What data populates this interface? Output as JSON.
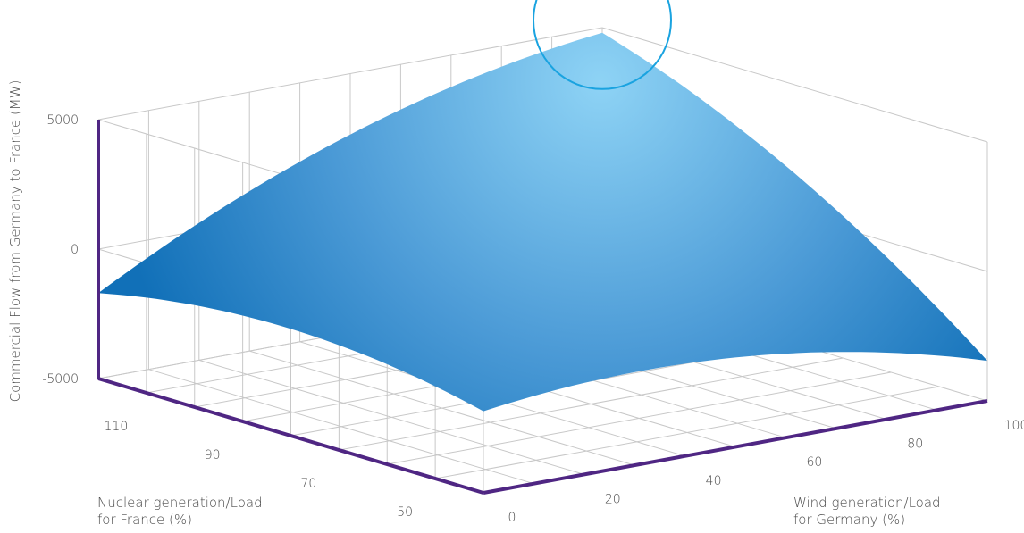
{
  "chart_data": {
    "type": "surface",
    "title": "",
    "xlabel": {
      "line1": "Wind generation/Load",
      "line2": "for Germany (%)"
    },
    "ylabel": {
      "line1": "Nuclear generation/Load",
      "line2": "for France (%)"
    },
    "zlabel": "Commercial Flow from Germany to France (MW)",
    "x_ticks": [
      "0",
      "20",
      "40",
      "60",
      "80",
      "100"
    ],
    "y_ticks": [
      "50",
      "70",
      "90",
      "110"
    ],
    "z_ticks": [
      "5000",
      "0",
      "-5000"
    ],
    "xlim": [
      0,
      100
    ],
    "ylim": [
      40,
      120
    ],
    "zlim": [
      -5000,
      5000
    ],
    "grid": true,
    "colors": {
      "axis": "#4f2683",
      "grid": "#c8c8c8",
      "surface_light": "#8ed3f5",
      "surface_dark": "#1170b8",
      "highlight": "#1aa3e0",
      "text": "#4a4a4a"
    },
    "surface": {
      "x": [
        0,
        100
      ],
      "y": [
        40,
        120
      ],
      "z": [
        [
          -1850,
          -3450
        ],
        [
          -1700,
          4800
        ]
      ]
    },
    "annotation": {
      "type": "circle",
      "x": 100,
      "y": 120,
      "z": 4800
    }
  }
}
